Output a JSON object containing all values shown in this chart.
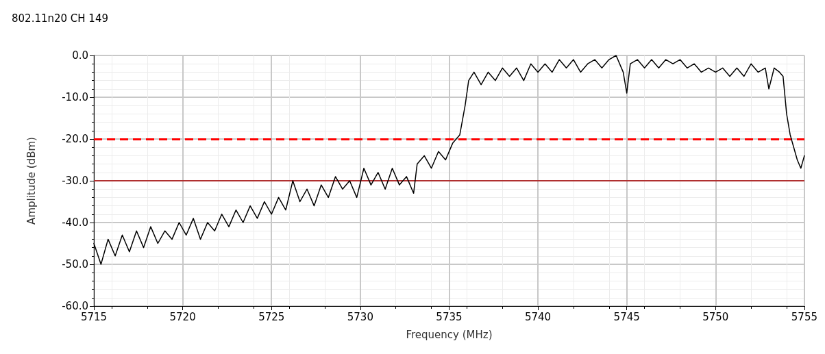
{
  "chart_data": {
    "type": "line",
    "title": "802.11n20 CH 149",
    "xlabel": "Frequency (MHz)",
    "ylabel": "Amplitude (dBm)",
    "xlim": [
      5715,
      5755
    ],
    "xticks": [
      5715,
      5720,
      5725,
      5730,
      5735,
      5740,
      5745,
      5750,
      5755
    ],
    "ylim": [
      -60,
      0
    ],
    "yticks": [
      {
        "value": -60,
        "label": "-60.0"
      },
      {
        "value": -50,
        "label": "-50.0"
      },
      {
        "value": -40,
        "label": "-40.0"
      },
      {
        "value": -30,
        "label": "-30.0"
      },
      {
        "value": -20,
        "label": "-20.0"
      },
      {
        "value": -10,
        "label": "-10.0"
      },
      {
        "value": 0,
        "label": "0.0"
      }
    ],
    "grid": true,
    "marker": "none",
    "line_style": "solid",
    "ref_lines": [
      {
        "axis": "y",
        "value": -20,
        "color": "#ff0000",
        "line_style": "dashed"
      },
      {
        "axis": "y",
        "value": -30,
        "color": "#b03030",
        "line_style": "solid"
      }
    ],
    "series": [
      {
        "color": "#000000",
        "x": [
          5715,
          5715.4,
          5715.8,
          5716.2,
          5716.6,
          5717,
          5717.4,
          5717.8,
          5718.2,
          5718.6,
          5719,
          5719.4,
          5719.8,
          5720.2,
          5720.6,
          5721,
          5721.4,
          5721.8,
          5722.2,
          5722.6,
          5723,
          5723.4,
          5723.8,
          5724.2,
          5724.6,
          5725,
          5725.4,
          5725.8,
          5726.2,
          5726.6,
          5727,
          5727.4,
          5727.8,
          5728.2,
          5728.6,
          5729,
          5729.4,
          5729.8,
          5730.2,
          5730.6,
          5731,
          5731.4,
          5731.8,
          5732.2,
          5732.6,
          5733,
          5733.2,
          5733.6,
          5734,
          5734.4,
          5734.8,
          5735.2,
          5735.6,
          5735.9,
          5736.1,
          5736.4,
          5736.8,
          5737.2,
          5737.6,
          5738,
          5738.4,
          5738.8,
          5739.2,
          5739.6,
          5740,
          5740.4,
          5740.8,
          5741.2,
          5741.6,
          5742,
          5742.4,
          5742.8,
          5743.2,
          5743.6,
          5744,
          5744.4,
          5744.8,
          5745,
          5745.2,
          5745.6,
          5746,
          5746.4,
          5746.8,
          5747.2,
          5747.6,
          5748,
          5748.4,
          5748.8,
          5749.2,
          5749.6,
          5750,
          5750.4,
          5750.8,
          5751.2,
          5751.6,
          5752,
          5752.4,
          5752.8,
          5753,
          5753.3,
          5753.6,
          5753.8,
          5754,
          5754.2,
          5754.4,
          5754.6,
          5754.8,
          5755
        ],
        "values": [
          -45,
          -50,
          -44,
          -48,
          -43,
          -47,
          -42,
          -46,
          -41,
          -45,
          -42,
          -44,
          -40,
          -43,
          -39,
          -44,
          -40,
          -42,
          -38,
          -41,
          -37,
          -40,
          -36,
          -39,
          -35,
          -38,
          -34,
          -37,
          -30,
          -35,
          -32,
          -36,
          -31,
          -34,
          -29,
          -32,
          -30,
          -34,
          -27,
          -31,
          -28,
          -32,
          -27,
          -31,
          -29,
          -33,
          -26,
          -24,
          -27,
          -23,
          -25,
          -21,
          -19,
          -12,
          -6,
          -4,
          -7,
          -4,
          -6,
          -3,
          -5,
          -3,
          -6,
          -2,
          -4,
          -2,
          -4,
          -1,
          -3,
          -1,
          -4,
          -2,
          -1,
          -3,
          -1,
          0,
          -4,
          -9,
          -2,
          -1,
          -3,
          -1,
          -3,
          -1,
          -2,
          -1,
          -3,
          -2,
          -4,
          -3,
          -4,
          -3,
          -5,
          -3,
          -5,
          -2,
          -4,
          -3,
          -8,
          -3,
          -4,
          -5,
          -14,
          -19,
          -22,
          -25,
          -27,
          -24
        ]
      }
    ]
  }
}
